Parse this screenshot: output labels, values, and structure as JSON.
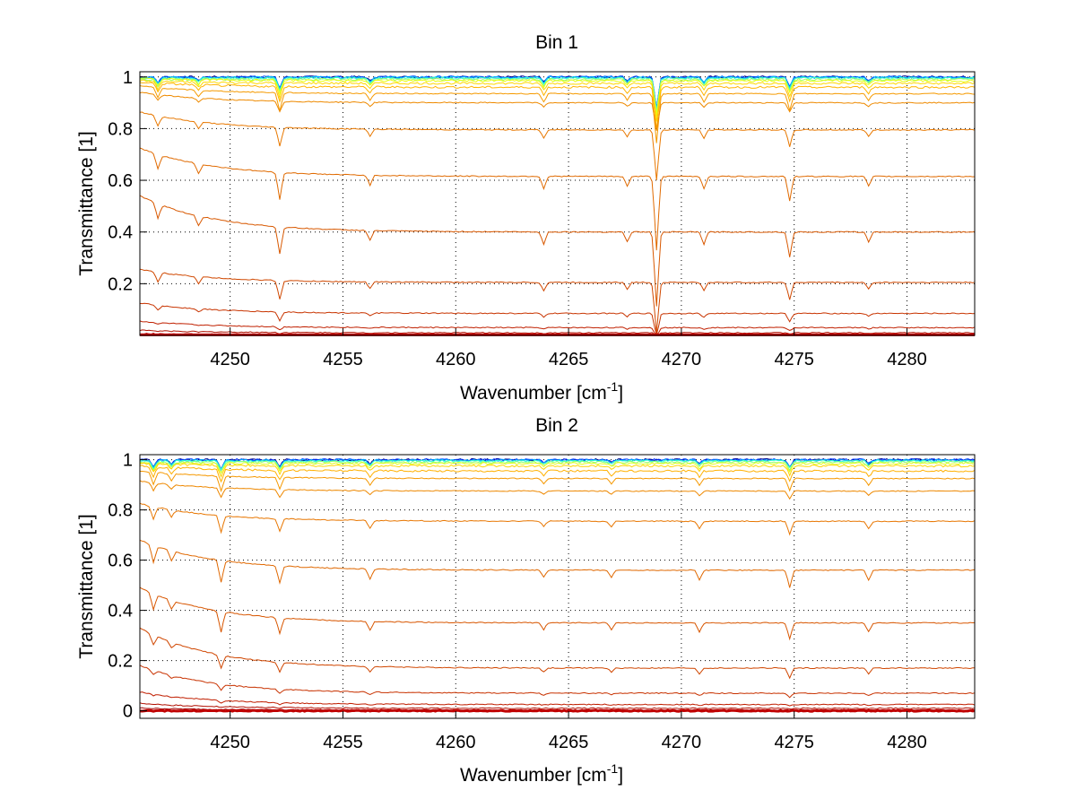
{
  "chart_data": [
    {
      "type": "line",
      "title": "Bin 1",
      "xlabel": "Wavenumber [cm",
      "xlabel_sup": "-1",
      "xlabel_end": "]",
      "ylabel": "Transmittance [1]",
      "xlim": [
        4246,
        4283
      ],
      "ylim": [
        0,
        1.02
      ],
      "xticks": [
        4250,
        4255,
        4260,
        4265,
        4270,
        4275,
        4280
      ],
      "xtick_labels": [
        "4250",
        "4255",
        "4260",
        "4265",
        "4270",
        "4275",
        "4280"
      ],
      "yticks": [
        0.2,
        0.4,
        0.6,
        0.8,
        1
      ],
      "ytick_labels": [
        "0.2",
        "0.4",
        "0.6",
        "0.8",
        "1"
      ],
      "grid": true,
      "dips": [
        {
          "x": 4246.8,
          "depth": 0.06
        },
        {
          "x": 4248.6,
          "depth": 0.04
        },
        {
          "x": 4252.2,
          "depth": 0.11
        },
        {
          "x": 4256.2,
          "depth": 0.04
        },
        {
          "x": 4263.9,
          "depth": 0.05
        },
        {
          "x": 4267.6,
          "depth": 0.04
        },
        {
          "x": 4268.9,
          "depth": 0.3
        },
        {
          "x": 4271.0,
          "depth": 0.05
        },
        {
          "x": 4274.8,
          "depth": 0.1
        },
        {
          "x": 4278.3,
          "depth": 0.04
        }
      ],
      "series": [
        {
          "plateau": 1.0,
          "rise": 0.0,
          "color": "#00008f"
        },
        {
          "plateau": 1.0,
          "rise": 0.0,
          "color": "#0050ff"
        },
        {
          "plateau": 0.998,
          "rise": 0.0,
          "color": "#00c0ff"
        },
        {
          "plateau": 0.995,
          "rise": 0.0,
          "color": "#40ffbf"
        },
        {
          "plateau": 0.99,
          "rise": 0.0,
          "color": "#a0ff60"
        },
        {
          "plateau": 0.985,
          "rise": 0.01,
          "color": "#e8ff10"
        },
        {
          "plateau": 0.975,
          "rise": 0.01,
          "color": "#ffd800"
        },
        {
          "plateau": 0.96,
          "rise": 0.02,
          "color": "#ffb400"
        },
        {
          "plateau": 0.935,
          "rise": 0.03,
          "color": "#f59a00"
        },
        {
          "plateau": 0.9,
          "rise": 0.04,
          "color": "#ee8a00"
        },
        {
          "plateau": 0.795,
          "rise": 0.07,
          "color": "#e87800"
        },
        {
          "plateau": 0.615,
          "rise": 0.11,
          "color": "#e06a00"
        },
        {
          "plateau": 0.4,
          "rise": 0.14,
          "color": "#d85800"
        },
        {
          "plateau": 0.205,
          "rise": 0.05,
          "color": "#d04800"
        },
        {
          "plateau": 0.085,
          "rise": 0.04,
          "color": "#c83400"
        },
        {
          "plateau": 0.03,
          "rise": 0.025,
          "color": "#c02000"
        },
        {
          "plateau": 0.01,
          "rise": 0.01,
          "color": "#b01000"
        },
        {
          "plateau": 0.003,
          "rise": 0.004,
          "color": "#a00000"
        },
        {
          "plateau": 0.0,
          "rise": 0.0,
          "color": "#c00000"
        }
      ]
    },
    {
      "type": "line",
      "title": "Bin 2",
      "xlabel": "Wavenumber [cm",
      "xlabel_sup": "-1",
      "xlabel_end": "]",
      "ylabel": "Transmittance [1]",
      "xlim": [
        4246,
        4283
      ],
      "ylim": [
        -0.03,
        1.02
      ],
      "xticks": [
        4250,
        4255,
        4260,
        4265,
        4270,
        4275,
        4280
      ],
      "xtick_labels": [
        "4250",
        "4255",
        "4260",
        "4265",
        "4270",
        "4275",
        "4280"
      ],
      "yticks": [
        0,
        0.2,
        0.4,
        0.6,
        0.8,
        1
      ],
      "ytick_labels": [
        "0",
        "0.2",
        "0.4",
        "0.6",
        "0.8",
        "1"
      ],
      "grid": true,
      "dips": [
        {
          "x": 4246.6,
          "depth": 0.07
        },
        {
          "x": 4247.4,
          "depth": 0.04
        },
        {
          "x": 4249.6,
          "depth": 0.09
        },
        {
          "x": 4252.2,
          "depth": 0.07
        },
        {
          "x": 4256.2,
          "depth": 0.04
        },
        {
          "x": 4263.9,
          "depth": 0.03
        },
        {
          "x": 4266.9,
          "depth": 0.03
        },
        {
          "x": 4270.8,
          "depth": 0.04
        },
        {
          "x": 4274.8,
          "depth": 0.07
        },
        {
          "x": 4278.3,
          "depth": 0.04
        }
      ],
      "series": [
        {
          "plateau": 1.0,
          "rise": 0.0,
          "color": "#00008f"
        },
        {
          "plateau": 1.0,
          "rise": 0.0,
          "color": "#0030ff"
        },
        {
          "plateau": 0.998,
          "rise": 0.0,
          "color": "#00a8ff"
        },
        {
          "plateau": 0.995,
          "rise": 0.0,
          "color": "#30ffcf"
        },
        {
          "plateau": 0.99,
          "rise": 0.0,
          "color": "#90ff70"
        },
        {
          "plateau": 0.985,
          "rise": 0.0,
          "color": "#e0ff20"
        },
        {
          "plateau": 0.975,
          "rise": 0.01,
          "color": "#ffd400"
        },
        {
          "plateau": 0.955,
          "rise": 0.02,
          "color": "#ffb000"
        },
        {
          "plateau": 0.925,
          "rise": 0.03,
          "color": "#f59800"
        },
        {
          "plateau": 0.875,
          "rise": 0.04,
          "color": "#ee8800"
        },
        {
          "plateau": 0.755,
          "rise": 0.07,
          "color": "#e87600"
        },
        {
          "plateau": 0.56,
          "rise": 0.12,
          "color": "#e06800"
        },
        {
          "plateau": 0.35,
          "rise": 0.14,
          "color": "#d85600"
        },
        {
          "plateau": 0.17,
          "rise": 0.16,
          "color": "#d04600"
        },
        {
          "plateau": 0.07,
          "rise": 0.11,
          "color": "#c83200"
        },
        {
          "plateau": 0.025,
          "rise": 0.05,
          "color": "#c01e00"
        },
        {
          "plateau": 0.01,
          "rise": 0.02,
          "color": "#b00e00"
        },
        {
          "plateau": 0.003,
          "rise": 0.008,
          "color": "#a00000"
        },
        {
          "plateau": 0.0,
          "rise": 0.0,
          "color": "#c00000"
        }
      ]
    }
  ]
}
